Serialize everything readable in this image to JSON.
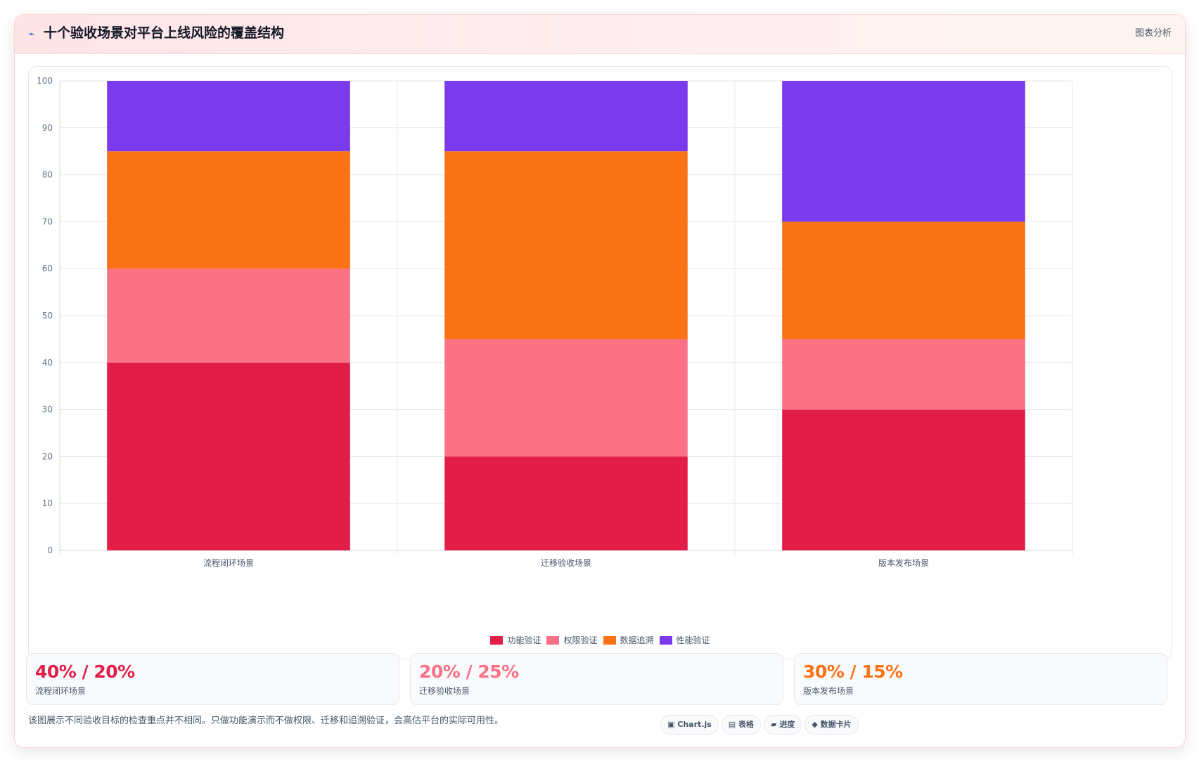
{
  "header": {
    "icon": "bolt-icon",
    "title": "十个验收场景对平台上线风险的覆盖结构",
    "link_label": "图表分析"
  },
  "chart_data": {
    "type": "bar",
    "stacked": true,
    "categories": [
      "流程闭环场景",
      "迁移验收场景",
      "版本发布场景"
    ],
    "series": [
      {
        "name": "功能验证",
        "color": "#e11d48",
        "values": [
          40,
          20,
          30
        ]
      },
      {
        "name": "权限验证",
        "color": "#fb7185",
        "values": [
          20,
          25,
          15
        ]
      },
      {
        "name": "数据追溯",
        "color": "#f97316",
        "values": [
          25,
          40,
          25
        ]
      },
      {
        "name": "性能验证",
        "color": "#7c3aed",
        "values": [
          15,
          15,
          30
        ]
      }
    ],
    "ylim": [
      0,
      100
    ],
    "yticks": [
      "0",
      "10",
      "20",
      "30",
      "40",
      "50",
      "60",
      "70",
      "80",
      "90",
      "100"
    ],
    "grid": true,
    "legend": "bottom"
  },
  "stats": [
    {
      "value": "40% / 20%",
      "label": "流程闭环场景",
      "color": "#e11d48"
    },
    {
      "value": "20% / 25%",
      "label": "迁移验收场景",
      "color": "#fb7185"
    },
    {
      "value": "30% / 15%",
      "label": "版本发布场景",
      "color": "#f97316"
    }
  ],
  "note": "该图展示不同验收目标的检查重点并不相同。只做功能演示而不做权限、迁移和追溯验证，会高估平台的实际可用性。",
  "chips": [
    {
      "icon": "▣",
      "label": "Chart.js"
    },
    {
      "icon": "▤",
      "label": "表格"
    },
    {
      "icon": "▰",
      "label": "进度"
    },
    {
      "icon": "◆",
      "label": "数据卡片"
    }
  ]
}
